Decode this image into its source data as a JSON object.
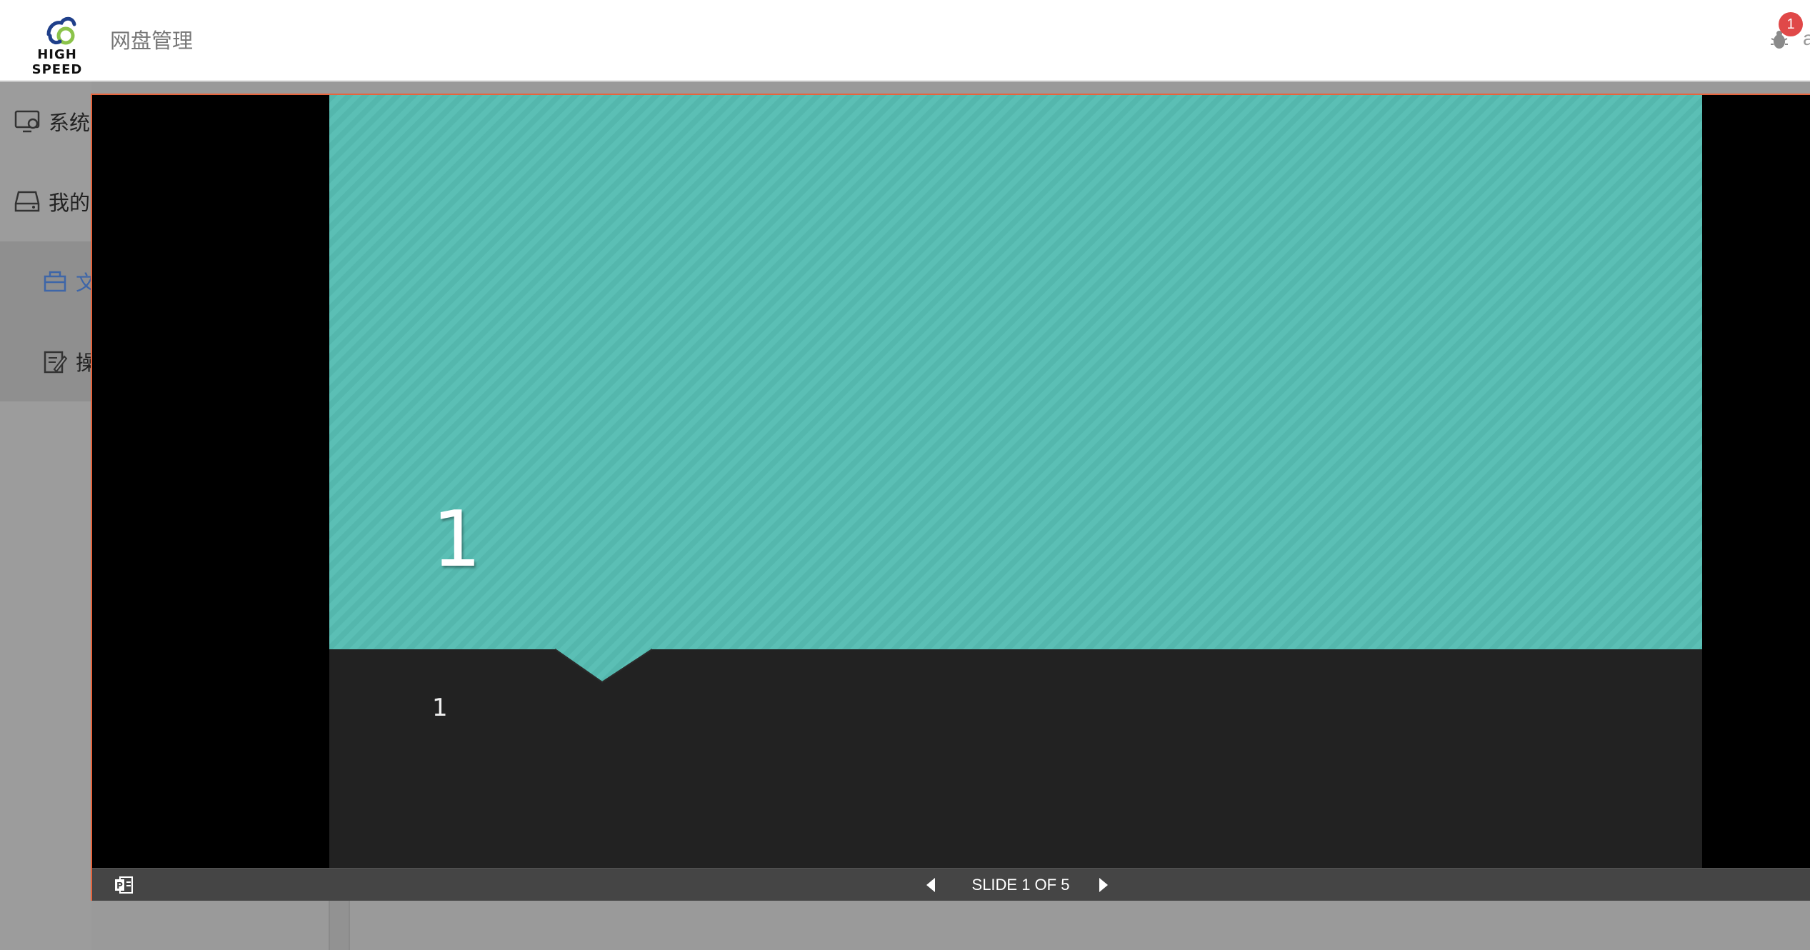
{
  "header": {
    "logo_text": "HIGH SPEED",
    "app_title": "网盘管理",
    "notification_count": "1",
    "user_initial": "a"
  },
  "sidebar": {
    "items": [
      {
        "label": "系统",
        "icon": "settings-monitor-icon"
      },
      {
        "label": "我的",
        "icon": "drive-icon"
      },
      {
        "label": "文",
        "icon": "folder-icon",
        "active": true
      },
      {
        "label": "操",
        "icon": "edit-log-icon"
      }
    ]
  },
  "viewer": {
    "slide_title": "1",
    "slide_subtitle": "1",
    "slide_counter": "SLIDE 1 OF 5",
    "current_slide": 1,
    "total_slides": 5
  },
  "colors": {
    "teal": "#5bbfb5",
    "dark": "#222222",
    "toolbar": "#454545",
    "border_accent": "#e8643c",
    "badge": "#e04848",
    "active_nav": "#3e66a8"
  }
}
